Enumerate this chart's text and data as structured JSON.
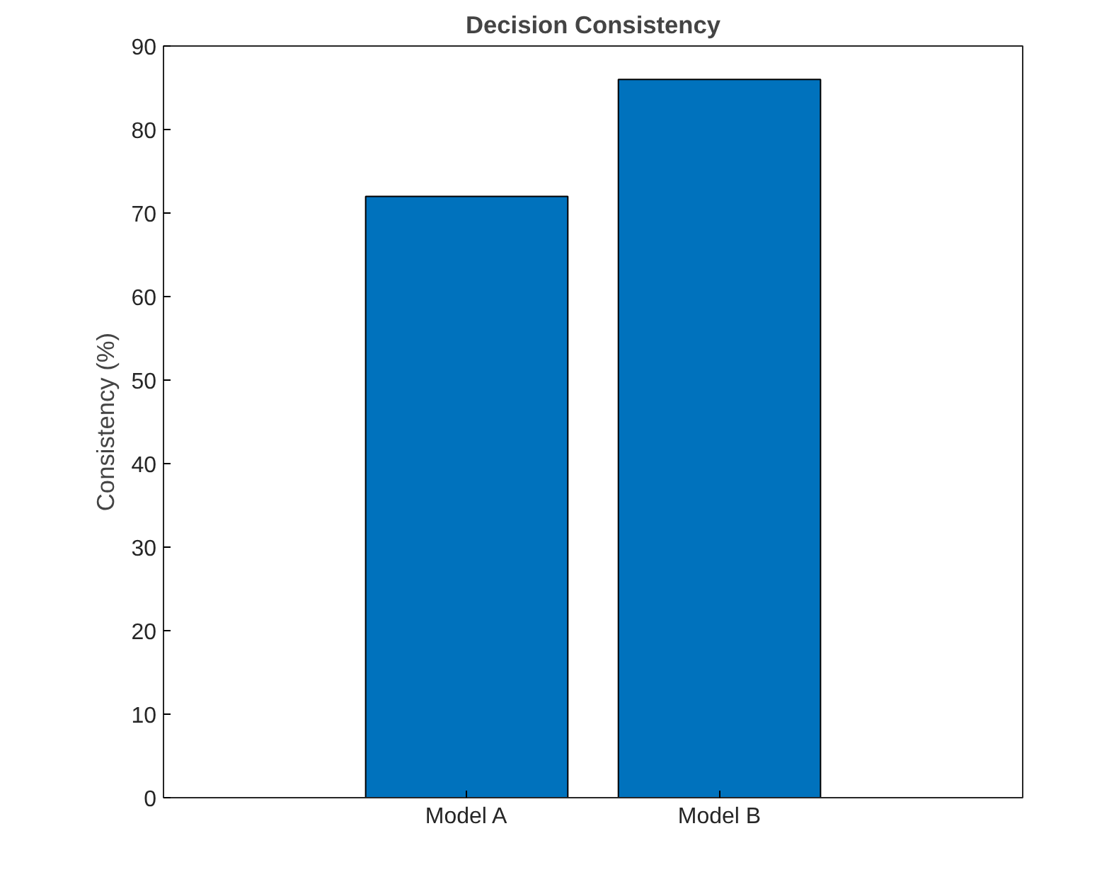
{
  "chart_data": {
    "type": "bar",
    "title": "Decision Consistency",
    "ylabel": "Consistency (%)",
    "categories": [
      "Model A",
      "Model B"
    ],
    "values": [
      72,
      86
    ],
    "color": "#0072bd",
    "ylim": [
      0,
      90
    ],
    "yticks": [
      0,
      10,
      20,
      30,
      40,
      50,
      60,
      70,
      80,
      90
    ],
    "grid": false
  }
}
